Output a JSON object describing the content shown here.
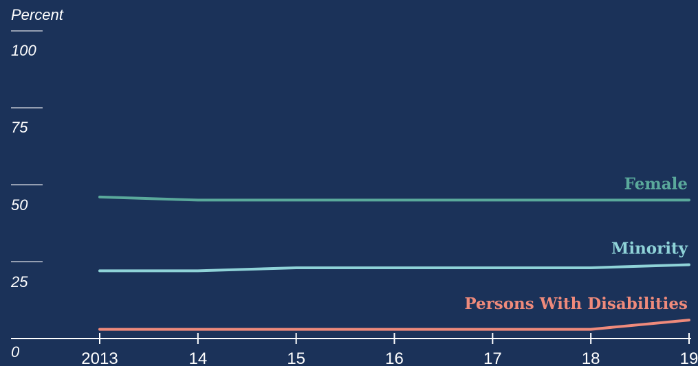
{
  "chart_data": {
    "type": "line",
    "ylabel": "Percent",
    "ylim": [
      0,
      100
    ],
    "yticks": [
      "100",
      "75",
      "50",
      "25",
      "0"
    ],
    "x": [
      "2013",
      "14",
      "15",
      "16",
      "17",
      "18",
      "19"
    ],
    "series": [
      {
        "name": "Female",
        "color": "#5aa99b",
        "values": [
          46,
          45,
          45,
          45,
          45,
          45,
          45
        ]
      },
      {
        "name": "Minority",
        "color": "#8fd3d8",
        "values": [
          22,
          22,
          23,
          23,
          23,
          23,
          24
        ]
      },
      {
        "name": "Persons With Disabilities",
        "color": "#ef8a7b",
        "values": [
          3,
          3,
          3,
          3,
          3,
          3,
          6
        ]
      }
    ],
    "background": "#1b3259",
    "axis_color": "#ffffff",
    "grid": false,
    "legend": "inline-right"
  }
}
